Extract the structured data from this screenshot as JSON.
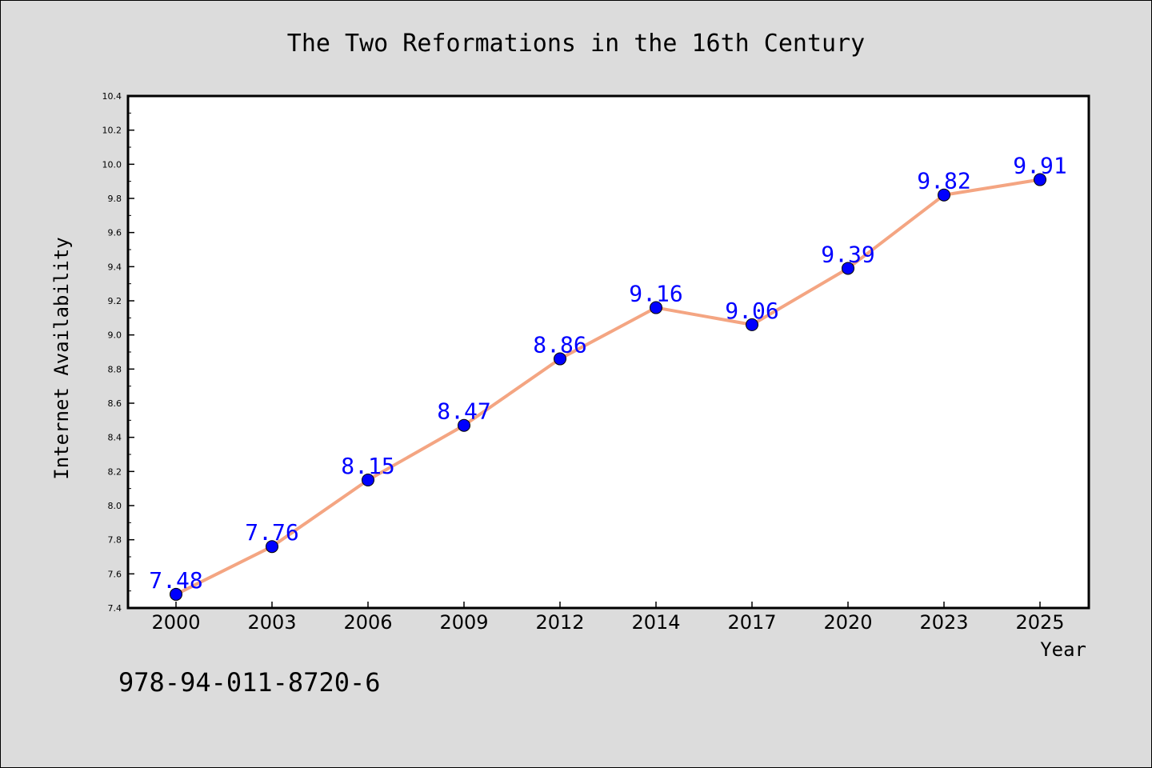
{
  "chart_data": {
    "type": "line",
    "title": "The Two Reformations in the 16th Century",
    "xlabel": "Year",
    "ylabel": "Internet Availability",
    "categories": [
      "2000",
      "2003",
      "2006",
      "2009",
      "2012",
      "2014",
      "2017",
      "2020",
      "2023",
      "2025"
    ],
    "series": [
      {
        "values": [
          7.48,
          7.76,
          8.15,
          8.47,
          8.86,
          9.16,
          9.06,
          9.39,
          9.82,
          9.91
        ]
      }
    ],
    "data_labels": [
      "7.48",
      "7.76",
      "8.15",
      "8.47",
      "8.86",
      "9.16",
      "9.06",
      "9.39",
      "9.82",
      "9.91"
    ],
    "ylim": [
      7.4,
      10.4
    ],
    "yticks": [
      "7.4",
      "7.6",
      "7.8",
      "8.0",
      "8.2",
      "8.4",
      "8.6",
      "8.8",
      "9.0",
      "9.2",
      "9.4",
      "9.6",
      "9.8",
      "10.0",
      "10.2",
      "10.4"
    ],
    "grid": false,
    "legend": "none",
    "line_color": "#f4a582",
    "marker_color": "#0000ff",
    "label_color": "#0000ff"
  },
  "footnote": "978-94-011-8720-6"
}
